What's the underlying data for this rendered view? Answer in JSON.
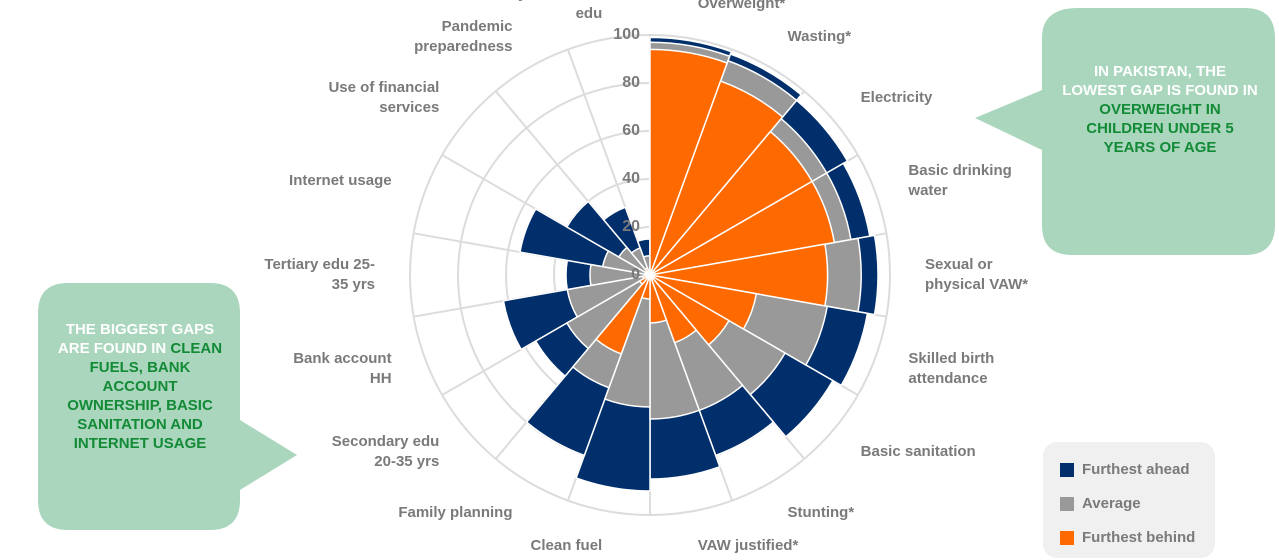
{
  "chart_data": {
    "type": "polar_area",
    "categories": [
      [
        "Overweight*"
      ],
      [
        "Wasting*"
      ],
      [
        "Electricity"
      ],
      [
        "Basic drinking",
        "water"
      ],
      [
        "Sexual or",
        "physical VAW*"
      ],
      [
        "Skilled birth",
        "attendance"
      ],
      [
        "Basic sanitation"
      ],
      [
        "Stunting*"
      ],
      [
        "VAW justified*"
      ],
      [
        "Clean fuel"
      ],
      [
        "Family planning"
      ],
      [
        "Secondary edu",
        "20-35 yrs"
      ],
      [
        "Bank account",
        "HH"
      ],
      [
        "Tertiary edu 25-",
        "35 yrs"
      ],
      [
        "Internet usage"
      ],
      [
        "Use of financial",
        "services"
      ],
      [
        "Pandemic",
        "preparedness"
      ],
      [
        "Early childhood",
        "edu"
      ]
    ],
    "series": [
      {
        "name": "Furthest ahead",
        "color": "#002f6c",
        "values": [
          99,
          98,
          95,
          93,
          95,
          92,
          88,
          80,
          85,
          90,
          80,
          55,
          62,
          35,
          55,
          40,
          30,
          15
        ]
      },
      {
        "name": "Average",
        "color": "#999999",
        "values": [
          97,
          95,
          85,
          85,
          88,
          75,
          65,
          60,
          60,
          55,
          50,
          40,
          35,
          25,
          20,
          15,
          12,
          8
        ]
      },
      {
        "name": "Furthest behind",
        "color": "#ff6a00",
        "values": [
          94,
          86,
          78,
          78,
          74,
          45,
          38,
          30,
          20,
          10,
          35,
          5,
          3,
          2,
          2,
          2,
          3,
          2
        ]
      }
    ],
    "rlim": [
      0,
      100
    ],
    "rticks": [
      0,
      20,
      40,
      60,
      80,
      100
    ],
    "grid": true,
    "legend": "bottom-right",
    "callouts": [
      {
        "text": "IN PAKISTAN, THE LOWEST GAP IS FOUND IN",
        "highlight": "OVERWEIGHT IN CHILDREN UNDER 5 YEARS OF AGE"
      },
      {
        "text": "THE BIGGEST GAPS ARE FOUND IN",
        "highlight": "CLEAN FUELS, BANK ACCOUNT OWNERSHIP, BASIC SANITATION AND INTERNET USAGE"
      }
    ]
  }
}
